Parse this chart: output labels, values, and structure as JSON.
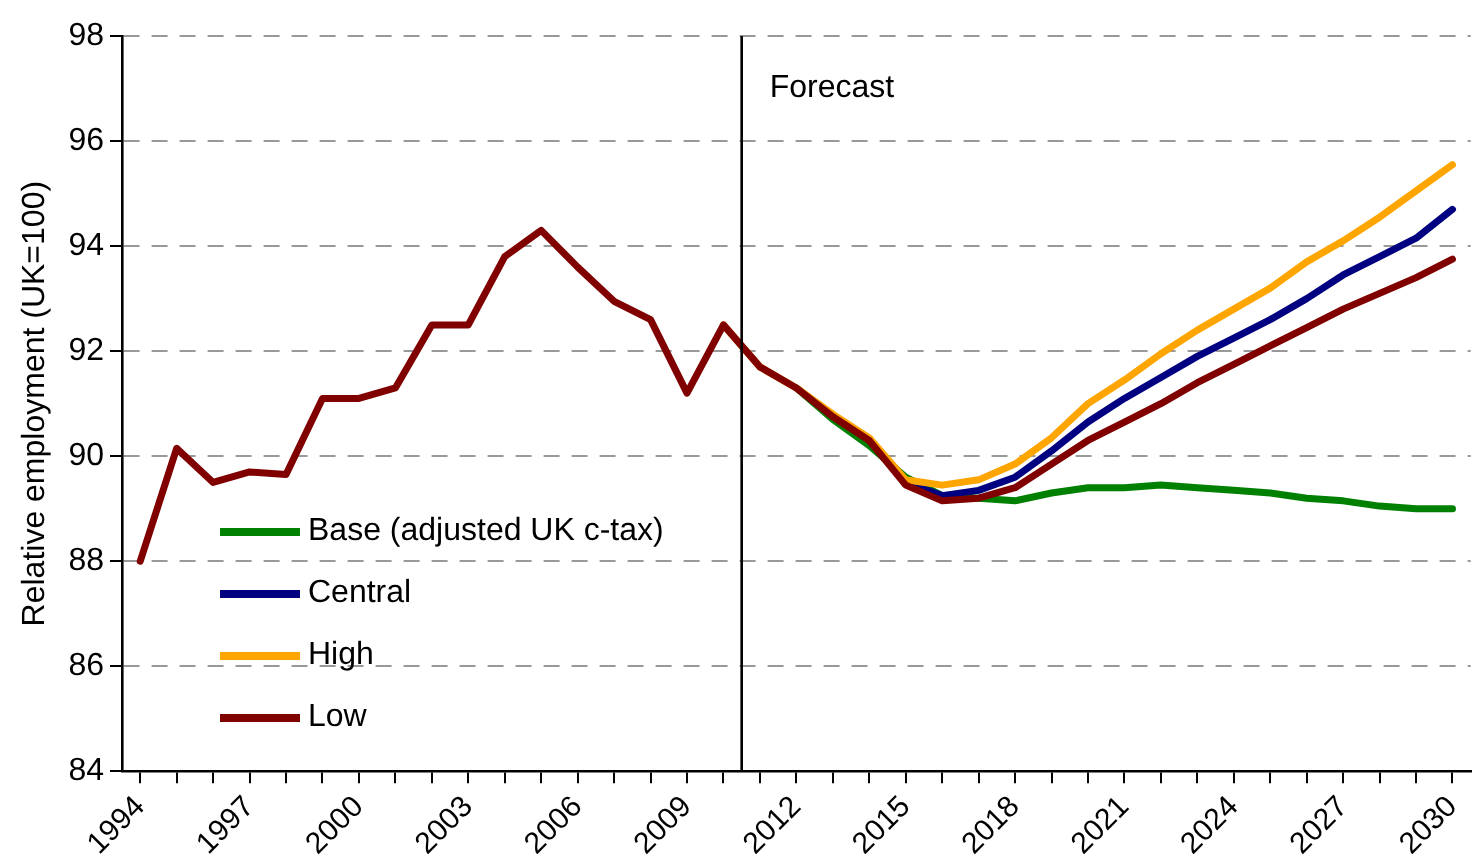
{
  "chart_data": {
    "type": "line",
    "ylabel": "Relative employment (UK=100)",
    "x": [
      1994,
      1995,
      1996,
      1997,
      1998,
      1999,
      2000,
      2001,
      2002,
      2003,
      2004,
      2005,
      2006,
      2007,
      2008,
      2009,
      2010,
      2011,
      2012,
      2013,
      2014,
      2015,
      2016,
      2017,
      2018,
      2019,
      2020,
      2021,
      2022,
      2023,
      2024,
      2025,
      2026,
      2027,
      2028,
      2029,
      2030
    ],
    "xlim": [
      1993.5,
      2030.5
    ],
    "xticks": [
      1994,
      {
        "value": 1995,
        "label": null
      },
      {
        "value": 1996,
        "label": null
      },
      1997,
      {
        "value": 1998,
        "label": null
      },
      {
        "value": 1999,
        "label": null
      },
      2000,
      {
        "value": 2001,
        "label": null
      },
      {
        "value": 2002,
        "label": null
      },
      2003,
      {
        "value": 2004,
        "label": null
      },
      {
        "value": 2005,
        "label": null
      },
      2006,
      {
        "value": 2007,
        "label": null
      },
      {
        "value": 2008,
        "label": null
      },
      2009,
      {
        "value": 2010,
        "label": null
      },
      {
        "value": 2011,
        "label": null
      },
      2012,
      {
        "value": 2013,
        "label": null
      },
      {
        "value": 2014,
        "label": null
      },
      2015,
      {
        "value": 2016,
        "label": null
      },
      {
        "value": 2017,
        "label": null
      },
      2018,
      {
        "value": 2019,
        "label": null
      },
      {
        "value": 2020,
        "label": null
      },
      2021,
      {
        "value": 2022,
        "label": null
      },
      {
        "value": 2023,
        "label": null
      },
      2024,
      {
        "value": 2025,
        "label": null
      },
      {
        "value": 2026,
        "label": null
      },
      2027,
      {
        "value": 2028,
        "label": null
      },
      {
        "value": 2029,
        "label": null
      },
      2030
    ],
    "ylim": [
      84,
      98
    ],
    "yticks": [
      84,
      86,
      88,
      90,
      92,
      94,
      96,
      98
    ],
    "grid": "y",
    "line_style": "solid",
    "marker": "none",
    "legend": "bottom left",
    "ref_lines": [
      {
        "axis": "x",
        "value": 2010.5,
        "label": "Forecast",
        "color": "#000000"
      }
    ],
    "series": [
      {
        "name": "Base (adjusted UK c-tax)",
        "color": "#008000",
        "values": [
          null,
          null,
          null,
          null,
          null,
          null,
          null,
          null,
          null,
          null,
          null,
          null,
          null,
          null,
          null,
          null,
          null,
          null,
          91.3,
          90.7,
          90.2,
          89.6,
          89.25,
          89.2,
          89.15,
          89.3,
          89.4,
          89.4,
          89.45,
          89.4,
          89.35,
          89.3,
          89.2,
          89.15,
          89.05,
          89.0,
          89.0
        ]
      },
      {
        "name": "Central",
        "color": "#000080",
        "values": [
          null,
          null,
          null,
          null,
          null,
          null,
          null,
          null,
          null,
          null,
          null,
          null,
          null,
          null,
          null,
          null,
          null,
          null,
          null,
          null,
          90.3,
          89.5,
          89.25,
          89.35,
          89.6,
          90.1,
          90.65,
          91.1,
          91.5,
          91.9,
          92.25,
          92.6,
          93.0,
          93.45,
          93.8,
          94.15,
          94.7
        ]
      },
      {
        "name": "High",
        "color": "#ffa500",
        "values": [
          null,
          null,
          null,
          null,
          null,
          null,
          null,
          null,
          null,
          null,
          null,
          null,
          null,
          null,
          null,
          null,
          92.5,
          91.7,
          91.3,
          90.8,
          90.35,
          89.55,
          89.45,
          89.55,
          89.85,
          90.35,
          91.0,
          91.45,
          91.95,
          92.4,
          92.8,
          93.2,
          93.7,
          94.1,
          94.55,
          95.05,
          95.55
        ]
      },
      {
        "name": "Low",
        "color": "#800000",
        "values": [
          88.0,
          90.15,
          89.5,
          89.7,
          89.65,
          91.1,
          91.1,
          91.3,
          92.5,
          92.5,
          93.8,
          94.3,
          93.6,
          92.95,
          92.6,
          91.2,
          92.5,
          91.7,
          91.3,
          90.75,
          90.3,
          89.45,
          89.15,
          89.2,
          89.4,
          89.85,
          90.3,
          90.65,
          91.0,
          91.4,
          91.75,
          92.1,
          92.45,
          92.8,
          93.1,
          93.4,
          93.75
        ]
      }
    ]
  }
}
